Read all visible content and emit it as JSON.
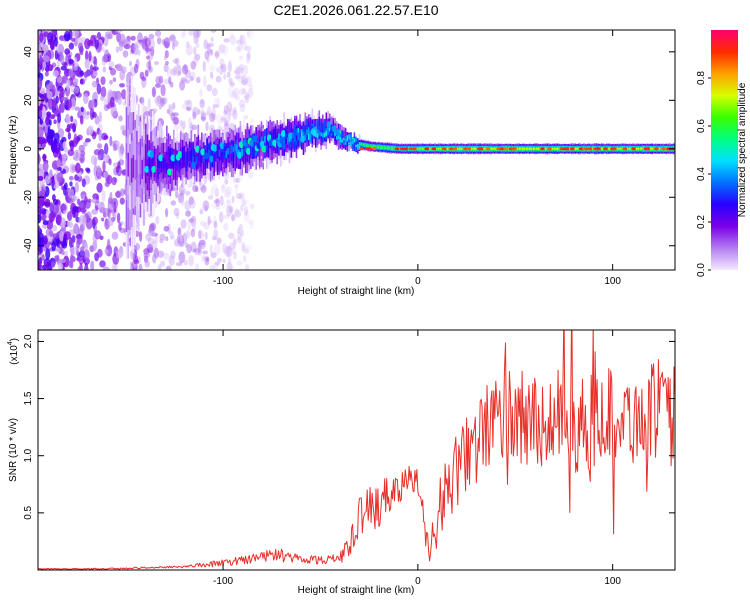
{
  "figure_title": "C2E1.2026.061.22.57.E10",
  "colors": {
    "snr_line": "#e8302a",
    "axis": "#000000",
    "background": "#ffffff"
  },
  "chart_data": [
    {
      "type": "heatmap",
      "title": "C2E1.2026.061.22.57.E10",
      "xlabel": "Height of straight line (km)",
      "ylabel": "Frequency (Hz)",
      "xlim": [
        -195,
        132
      ],
      "ylim": [
        -50,
        49
      ],
      "xticks": [
        -100,
        0,
        100
      ],
      "xtick_labels": [
        "-100",
        "0",
        "100"
      ],
      "yticks": [
        -40,
        -20,
        0,
        20,
        40
      ],
      "ytick_labels": [
        "-40",
        "-20",
        "0",
        "20",
        "40"
      ],
      "colorbar": {
        "label": "Normalized spectral amplitude",
        "range": [
          0,
          1
        ],
        "ticks": [
          0.0,
          0.2,
          0.4,
          0.6,
          0.8
        ],
        "tick_labels": [
          "0.0",
          "0.2",
          "0.4",
          "0.6",
          "0.8"
        ],
        "colormap": [
          "#f4eaff",
          "#b27cf0",
          "#7b00e8",
          "#2a00ff",
          "#0070ff",
          "#00e0ff",
          "#00ff80",
          "#38ff00",
          "#d8ff00",
          "#ffa000",
          "#ff2a00",
          "#ff0070"
        ]
      },
      "ridge": {
        "description_points_x": [
          -195,
          -150,
          -130,
          -110,
          -90,
          -70,
          -55,
          -45,
          -40,
          -35,
          -25,
          -10,
          0,
          20,
          60,
          100,
          132
        ],
        "center_freq_hz": [
          -8,
          -8,
          -6,
          -3,
          0,
          4,
          7,
          8,
          5,
          3,
          1,
          0,
          0,
          0,
          0,
          0,
          0
        ],
        "half_width_hz": [
          30,
          25,
          9,
          7,
          7,
          6,
          5,
          4,
          3,
          2,
          2,
          2,
          2,
          2,
          2,
          2,
          2
        ],
        "peak_amplitude": [
          0.08,
          0.1,
          0.28,
          0.35,
          0.4,
          0.45,
          0.5,
          0.5,
          0.55,
          0.6,
          0.7,
          0.75,
          0.8,
          0.85,
          0.85,
          0.85,
          0.85
        ]
      }
    },
    {
      "type": "line",
      "xlabel": "Height of straight line (km)",
      "ylabel": "SNR (10 * v/v)",
      "y_multiplier_label": "(x10",
      "y_multiplier_exp": "4",
      "xlim": [
        -195,
        132
      ],
      "ylim": [
        0,
        2.1
      ],
      "xticks": [
        -100,
        0,
        100
      ],
      "xtick_labels": [
        "-100",
        "0",
        "100"
      ],
      "yticks": [
        0.5,
        1.0,
        1.5,
        2.0
      ],
      "ytick_labels": [
        "0.5",
        "1.0",
        "1.5",
        "2.0"
      ],
      "series": [
        {
          "name": "SNR",
          "x": [
            -195,
            -180,
            -160,
            -140,
            -120,
            -100,
            -90,
            -80,
            -70,
            -60,
            -50,
            -40,
            -35,
            -30,
            -25,
            -20,
            -15,
            -10,
            -5,
            0,
            3,
            6,
            8,
            12,
            18,
            25,
            30,
            35,
            40,
            45,
            50,
            55,
            60,
            65,
            70,
            75,
            80,
            85,
            90,
            95,
            100,
            105,
            110,
            115,
            120,
            125,
            128,
            132
          ],
          "values": [
            0.01,
            0.01,
            0.01,
            0.02,
            0.03,
            0.06,
            0.09,
            0.12,
            0.13,
            0.1,
            0.09,
            0.1,
            0.25,
            0.45,
            0.55,
            0.55,
            0.65,
            0.7,
            0.8,
            0.8,
            0.5,
            0.1,
            0.3,
            0.6,
            0.8,
            1.0,
            1.1,
            1.25,
            1.3,
            1.35,
            1.3,
            1.35,
            1.35,
            1.3,
            1.3,
            1.4,
            1.3,
            1.25,
            1.3,
            1.4,
            1.35,
            1.4,
            1.3,
            1.35,
            1.4,
            1.35,
            1.3,
            1.4
          ],
          "jitter": [
            0.004,
            0.004,
            0.005,
            0.008,
            0.012,
            0.03,
            0.04,
            0.05,
            0.06,
            0.04,
            0.04,
            0.05,
            0.12,
            0.18,
            0.2,
            0.2,
            0.18,
            0.15,
            0.12,
            0.12,
            0.2,
            0.08,
            0.2,
            0.3,
            0.32,
            0.34,
            0.35,
            0.38,
            0.4,
            0.42,
            0.42,
            0.4,
            0.42,
            0.4,
            0.42,
            0.42,
            0.45,
            0.42,
            0.42,
            0.42,
            0.42,
            0.42,
            0.4,
            0.4,
            0.42,
            0.42,
            0.45,
            0.4
          ]
        }
      ]
    }
  ]
}
